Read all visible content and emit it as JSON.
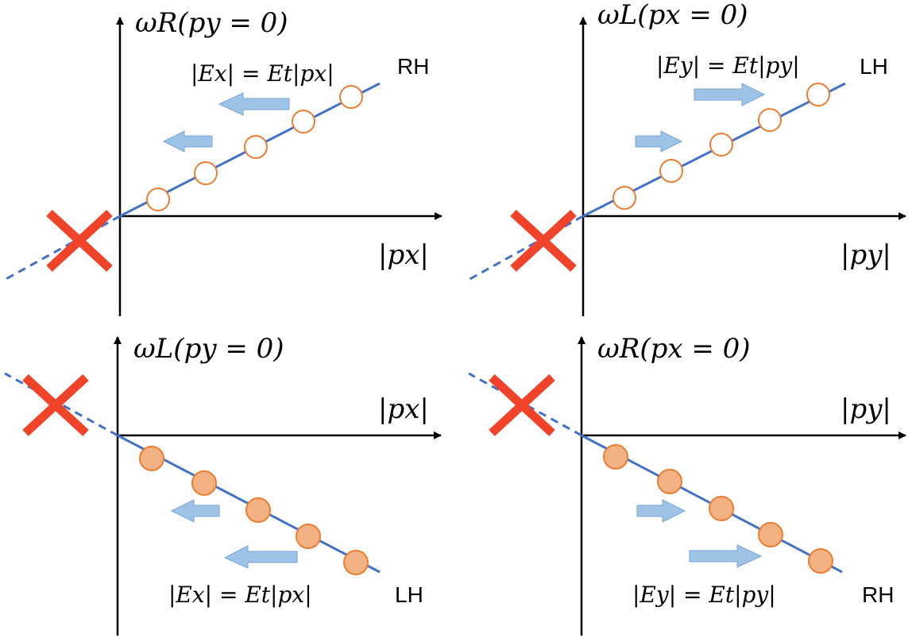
{
  "colors": {
    "axis": "#000000",
    "dispersion_line": "#4472c4",
    "circle_stroke": "#ed7d31",
    "circle_fill_filled": "#f4b183",
    "circle_fill_empty": "#ffffff",
    "arrow_fill": "#9dc3e6",
    "arrow_stroke": "#7aa6d6",
    "cross": "#f0432a"
  },
  "panels": [
    {
      "id": "top-left",
      "y_axis_label": "ωR(py = 0)",
      "x_axis_label": "|px|",
      "field_label": "|Ex| = Et|px|",
      "handedness": "RH",
      "slope": "positive",
      "filled": false,
      "arrow_direction": "left"
    },
    {
      "id": "top-right",
      "y_axis_label": "ωL(px = 0)",
      "x_axis_label": "|py|",
      "field_label": "|Ey| = Et|py|",
      "handedness": "LH",
      "slope": "positive",
      "filled": false,
      "arrow_direction": "right"
    },
    {
      "id": "bottom-left",
      "y_axis_label": "ωL(py = 0)",
      "x_axis_label": "|px|",
      "field_label": "|Ex| = Et|px|",
      "handedness": "LH",
      "slope": "negative",
      "filled": true,
      "arrow_direction": "left"
    },
    {
      "id": "bottom-right",
      "y_axis_label": "ωR(px = 0)",
      "x_axis_label": "|py|",
      "field_label": "|Ey| = Et|py|",
      "handedness": "RH",
      "slope": "negative",
      "filled": true,
      "arrow_direction": "right"
    }
  ]
}
